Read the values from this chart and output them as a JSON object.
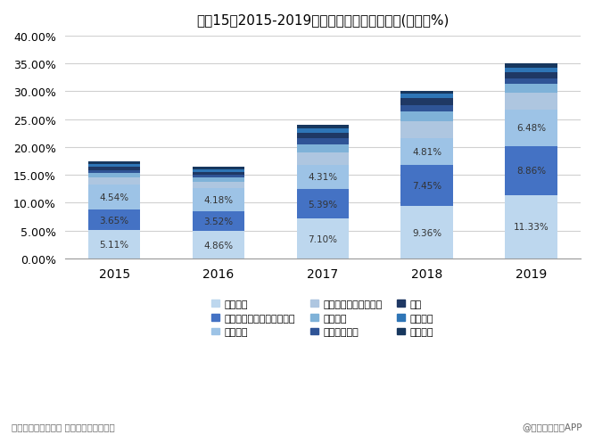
{
  "title": "图興15：2015-2019年主要企业市场份额占比(单位：%)",
  "years": [
    "2015",
    "2016",
    "2017",
    "2018",
    "2019"
  ],
  "companies": [
    "三一重工",
    "徐工集团工程机械有限公司",
    "中联重科",
    "柳工集团机械有限公司",
    "山河智能",
    "铁建重工集团",
    "龙工",
    "山推股份",
    "厦工机械"
  ],
  "colors": [
    "#bdd7ee",
    "#4472c4",
    "#9dc3e6",
    "#aec6e0",
    "#7fb2d8",
    "#2f5496",
    "#1f3864",
    "#2e75b6",
    "#17375e"
  ],
  "data": {
    "2015": [
      5.11,
      3.65,
      4.54,
      1.3,
      0.8,
      0.45,
      0.65,
      0.4,
      0.55
    ],
    "2016": [
      4.86,
      3.52,
      4.18,
      1.2,
      0.75,
      0.45,
      0.55,
      0.4,
      0.59
    ],
    "2017": [
      7.1,
      5.39,
      4.31,
      2.2,
      1.5,
      1.0,
      1.0,
      0.8,
      0.7
    ],
    "2018": [
      9.36,
      7.45,
      4.81,
      3.0,
      1.8,
      1.1,
      1.2,
      0.8,
      0.48
    ],
    "2019": [
      11.33,
      8.86,
      6.48,
      3.0,
      1.7,
      0.9,
      1.1,
      0.8,
      0.83
    ]
  },
  "labeled_values": {
    "2015": {
      "0": "5.11%",
      "1": "3.65%",
      "2": "4.54%"
    },
    "2016": {
      "0": "4.86%",
      "1": "3.52%",
      "2": "4.18%"
    },
    "2017": {
      "0": "7.10%",
      "1": "5.39%",
      "2": "4.31%"
    },
    "2018": {
      "0": "9.36%",
      "1": "7.45%",
      "2": "4.81%"
    },
    "2019": {
      "0": "11.33%",
      "1": "8.86%",
      "2": "6.48%"
    }
  },
  "ylim": [
    0,
    40
  ],
  "yticks": [
    0,
    5,
    10,
    15,
    20,
    25,
    30,
    35,
    40
  ],
  "ytick_labels": [
    "0.00%",
    "5.00%",
    "10.00%",
    "15.00%",
    "20.00%",
    "25.00%",
    "30.00%",
    "35.00%",
    "40.00%"
  ],
  "footer_left": "资料来源：公司年报 前瞻产业研究院整理",
  "footer_right": "@前瞻经济学人APP",
  "bg_color": "#ffffff"
}
